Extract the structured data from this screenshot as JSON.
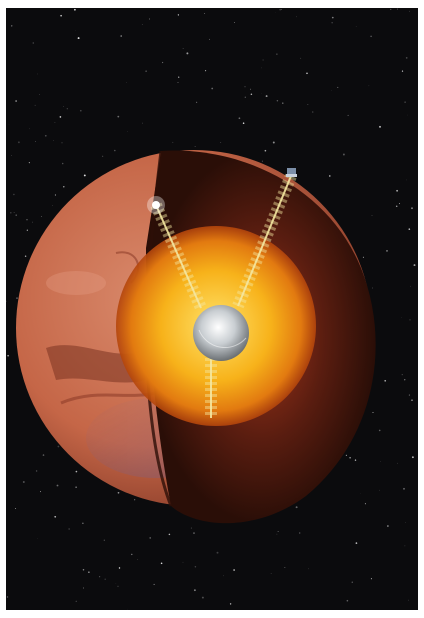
{
  "image": {
    "subject": "mars-interior-cutaway",
    "colors": {
      "space": "#0b0b0d",
      "surface": "#c8674a",
      "mantle": "#3b150d",
      "outer_core": "#f2b21a",
      "inner_core": "#d9dde0",
      "seismic_path": "#f4e7a0"
    }
  }
}
